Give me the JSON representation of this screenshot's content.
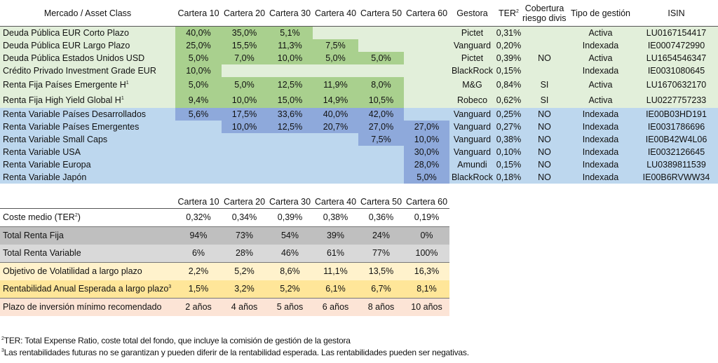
{
  "allocation_table": {
    "headers": {
      "asset_class": "Mercado / Asset Class",
      "carteras": [
        "Cartera 10",
        "Cartera 20",
        "Cartera 30",
        "Cartera 40",
        "Cartera 50",
        "Cartera 60"
      ],
      "gestora": "Gestora",
      "ter": "TER",
      "ter_sup": "2",
      "cobertura_line1": "Cobertura",
      "cobertura_line2": "riesgo divisa",
      "tipo": "Tipo de gestión",
      "isin": "ISIN"
    },
    "rows": [
      {
        "asset": "Deuda Pública EUR Corto Plazo",
        "sup": "",
        "group": "rf",
        "values": [
          "40,0%",
          "35,0%",
          "5,1%",
          "",
          "",
          ""
        ],
        "gestora": "Pictet",
        "ter": "0,31%",
        "cobertura": "",
        "tipo": "Activa",
        "isin": "LU0167154417"
      },
      {
        "asset": "Deuda Pública EUR Largo Plazo",
        "sup": "",
        "group": "rf",
        "values": [
          "25,0%",
          "15,5%",
          "11,3%",
          "7,5%",
          "",
          ""
        ],
        "gestora": "Vanguard",
        "ter": "0,20%",
        "cobertura": "",
        "tipo": "Indexada",
        "isin": "IE0007472990"
      },
      {
        "asset": "Deuda Pública Estados Unidos USD",
        "sup": "",
        "group": "rf",
        "values": [
          "5,0%",
          "7,0%",
          "10,0%",
          "5,0%",
          "5,0%",
          ""
        ],
        "gestora": "Pictet",
        "ter": "0,39%",
        "cobertura": "NO",
        "tipo": "Activa",
        "isin": "LU1654546347"
      },
      {
        "asset": "Crédito Privado Investment Grade EUR",
        "sup": "",
        "group": "rf",
        "values": [
          "10,0%",
          "",
          "",
          "",
          "",
          ""
        ],
        "gestora": "BlackRock",
        "ter": "0,15%",
        "cobertura": "",
        "tipo": "Indexada",
        "isin": "IE0031080645"
      },
      {
        "asset": "Renta Fija Países Emergente H",
        "sup": "1",
        "group": "rf",
        "values": [
          "5,0%",
          "5,0%",
          "12,5%",
          "11,9%",
          "8,0%",
          ""
        ],
        "gestora": "M&G",
        "ter": "0,84%",
        "cobertura": "SI",
        "tipo": "Activa",
        "isin": "LU1670632170"
      },
      {
        "asset": "Renta Fija High Yield Global H",
        "sup": "1",
        "group": "rf",
        "values": [
          "9,4%",
          "10,0%",
          "15,0%",
          "14,9%",
          "10,5%",
          ""
        ],
        "gestora": "Robeco",
        "ter": "0,62%",
        "cobertura": "SI",
        "tipo": "Activa",
        "isin": "LU0227757233"
      },
      {
        "asset": "Renta Variable Países Desarrollados",
        "sup": "",
        "group": "rv",
        "values": [
          "5,6%",
          "17,5%",
          "33,6%",
          "40,0%",
          "42,0%",
          ""
        ],
        "gestora": "Vanguard",
        "ter": "0,25%",
        "cobertura": "NO",
        "tipo": "Indexada",
        "isin": "IE00B03HD191"
      },
      {
        "asset": "Renta Variable Países Emergentes",
        "sup": "",
        "group": "rv",
        "values": [
          "",
          "10,0%",
          "12,5%",
          "20,7%",
          "27,0%",
          "27,0%"
        ],
        "gestora": "Vanguard",
        "ter": "0,27%",
        "cobertura": "NO",
        "tipo": "Indexada",
        "isin": "IE0031786696"
      },
      {
        "asset": "Renta Variable Small Caps",
        "sup": "",
        "group": "rv",
        "values": [
          "",
          "",
          "",
          "",
          "7,5%",
          "10,0%"
        ],
        "gestora": "Vanguard",
        "ter": "0,38%",
        "cobertura": "NO",
        "tipo": "Indexada",
        "isin": "IE00B42W4L06"
      },
      {
        "asset": "Renta Variable USA",
        "sup": "",
        "group": "rv",
        "values": [
          "",
          "",
          "",
          "",
          "",
          "30,0%"
        ],
        "gestora": "Vanguard",
        "ter": "0,10%",
        "cobertura": "NO",
        "tipo": "Indexada",
        "isin": "IE0032126645"
      },
      {
        "asset": "Renta Variable Europa",
        "sup": "",
        "group": "rv",
        "values": [
          "",
          "",
          "",
          "",
          "",
          "28,0%"
        ],
        "gestora": "Amundi",
        "ter": "0,15%",
        "cobertura": "NO",
        "tipo": "Indexada",
        "isin": "LU0389811539"
      },
      {
        "asset": "Renta Variable Japón",
        "sup": "",
        "group": "rv",
        "values": [
          "",
          "",
          "",
          "",
          "",
          "5,0%"
        ],
        "gestora": "BlackRock",
        "ter": "0,18%",
        "cobertura": "NO",
        "tipo": "Indexada",
        "isin": "IE00B6RVWW34"
      }
    ]
  },
  "summary_table": {
    "headers": [
      "Cartera 10",
      "Cartera 20",
      "Cartera 30",
      "Cartera 40",
      "Cartera 50",
      "Cartera 60"
    ],
    "rows": [
      {
        "label": "Coste medio (TER",
        "sup": "2",
        "suffix": ")",
        "values": [
          "0,32%",
          "0,34%",
          "0,39%",
          "0,38%",
          "0,36%",
          "0,19%"
        ]
      },
      {
        "label": "Total Renta Fija",
        "sup": "",
        "suffix": "",
        "values": [
          "94%",
          "73%",
          "54%",
          "39%",
          "24%",
          "0%"
        ]
      },
      {
        "label": "Total Renta Variable",
        "sup": "",
        "suffix": "",
        "values": [
          "6%",
          "28%",
          "46%",
          "61%",
          "77%",
          "100%"
        ]
      },
      {
        "label": "Objetivo de Volatilidad a largo plazo",
        "sup": "",
        "suffix": "",
        "values": [
          "2,2%",
          "5,2%",
          "8,6%",
          "11,1%",
          "13,5%",
          "16,3%"
        ]
      },
      {
        "label": "Rentabilidad Anual Esperada a largo plazo",
        "sup": "3",
        "suffix": "",
        "values": [
          "1,5%",
          "3,2%",
          "5,2%",
          "6,1%",
          "6,7%",
          "8,1%"
        ]
      },
      {
        "label": "Plazo de inversión mínimo recomendado",
        "sup": "",
        "suffix": "",
        "values": [
          "2 años",
          "4 años",
          "5 años",
          "6 años",
          "8 años",
          "10 años"
        ]
      }
    ]
  },
  "footnotes": [
    {
      "sup": "2",
      "text": "TER: Total Expense Ratio, coste total del fondo, que incluye la comisión de gestión de la gestora"
    },
    {
      "sup": "3",
      "text": "Las rentabilidades futuras no se garantizan y pueden diferir de la rentabilidad esperada. Las rentabilidades pueden ser negativas."
    }
  ],
  "colors": {
    "renta_fija_bg": "#E2EFDA",
    "renta_fija_highlight": "#A9D08E",
    "renta_variable_bg": "#BDD7EE",
    "renta_variable_highlight": "#8EA9DB",
    "total_rf_bg": "#BFBFBF",
    "total_rv_bg": "#D9D9D9",
    "volatility_bg": "#FFF2CC",
    "return_bg": "#FFE699",
    "horizon_bg": "#FCE4D6"
  }
}
